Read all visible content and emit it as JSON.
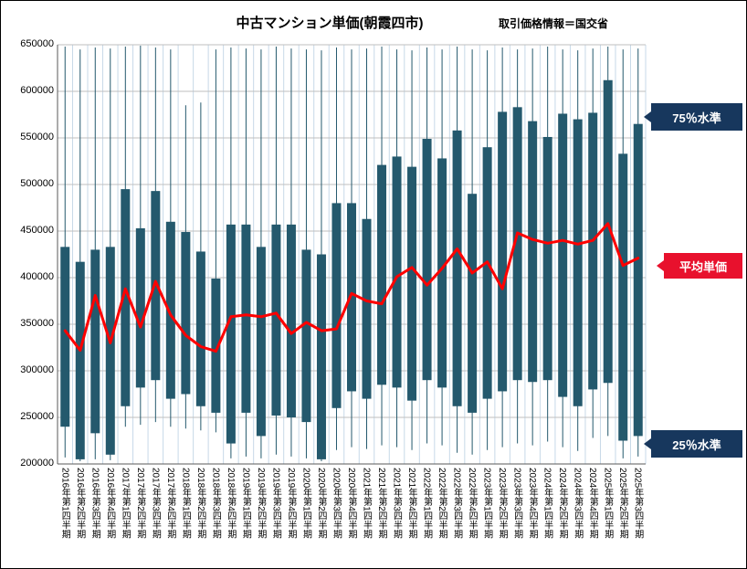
{
  "header": {
    "title": "中古マンション単価(朝霞四市)",
    "source": "取引価格情報＝国交省"
  },
  "annotations": {
    "upper": "75％水準",
    "average": "平均単価",
    "lower": "25％水準"
  },
  "colors": {
    "bar": "#24596d",
    "line": "#ff0000",
    "navy_box": "#17375d",
    "red_box": "#e8112d",
    "h_grid": "#bfbfbf",
    "v_grid": "#c7d9e8",
    "axis": "#595959"
  },
  "chart_data": {
    "type": "bar",
    "subtype": "floating 25%-75% range bars with high/low whiskers and average line",
    "title": "中古マンション単価(朝霞四市)",
    "source_note": "取引価格情報＝国交省",
    "ylim": [
      200000,
      650000
    ],
    "ytick_step": 50000,
    "grid": true,
    "legend": "none",
    "categories": [
      "2016年第1四半期",
      "2016年第2四半期",
      "2016年第3四半期",
      "2016年第4四半期",
      "2017年第1四半期",
      "2017年第2四半期",
      "2017年第3四半期",
      "2017年第4四半期",
      "2018年第1四半期",
      "2018年第2四半期",
      "2018年第3四半期",
      "2018年第4四半期",
      "2019年第1四半期",
      "2019年第2四半期",
      "2019年第3四半期",
      "2019年第4四半期",
      "2020年第1四半期",
      "2020年第2四半期",
      "2020年第3四半期",
      "2020年第4四半期",
      "2021年第1四半期",
      "2021年第2四半期",
      "2021年第3四半期",
      "2021年第4四半期",
      "2022年第1四半期",
      "2022年第2四半期",
      "2022年第3四半期",
      "2022年第4四半期",
      "2023年第1四半期",
      "2023年第2四半期",
      "2023年第3四半期",
      "2023年第4四半期",
      "2024年第1四半期",
      "2024年第2四半期",
      "2024年第3四半期",
      "2024年第4四半期",
      "2025年第1四半期",
      "2025年第2四半期",
      "2025年第3四半期"
    ],
    "series": [
      {
        "key": "q3",
        "name": "75％水準",
        "values": [
          433000,
          417000,
          430000,
          433000,
          495000,
          453000,
          493000,
          460000,
          449000,
          428000,
          399000,
          457000,
          457000,
          433000,
          457000,
          457000,
          430000,
          425000,
          480000,
          480000,
          463000,
          521000,
          530000,
          519000,
          549000,
          528000,
          558000,
          490000,
          540000,
          578000,
          583000,
          568000,
          551000,
          576000,
          570000,
          577000,
          612000,
          533000,
          565000
        ]
      },
      {
        "key": "q1",
        "name": "25％水準",
        "values": [
          240000,
          205000,
          233000,
          210000,
          262000,
          282000,
          290000,
          270000,
          275000,
          262000,
          255000,
          222000,
          255000,
          230000,
          252000,
          250000,
          245000,
          205000,
          260000,
          278000,
          270000,
          285000,
          282000,
          268000,
          290000,
          282000,
          262000,
          255000,
          270000,
          278000,
          290000,
          288000,
          290000,
          272000,
          262000,
          280000,
          287000,
          225000,
          230000
        ]
      },
      {
        "key": "average",
        "name": "平均単価",
        "values": [
          343000,
          322000,
          381000,
          330000,
          388000,
          347000,
          396000,
          360000,
          338000,
          326000,
          321000,
          358000,
          360000,
          358000,
          362000,
          340000,
          352000,
          343000,
          345000,
          383000,
          375000,
          372000,
          401000,
          411000,
          392000,
          410000,
          431000,
          405000,
          417000,
          388000,
          448000,
          441000,
          437000,
          440000,
          436000,
          440000,
          458000,
          413000,
          421000
        ]
      },
      {
        "key": "high",
        "name": "whisker_high",
        "values": [
          648000,
          645000,
          647000,
          646000,
          648000,
          649000,
          647000,
          645000,
          585000,
          588000,
          645000,
          647000,
          646000,
          645000,
          648000,
          646000,
          645000,
          644000,
          647000,
          645000,
          646000,
          648000,
          645000,
          644000,
          647000,
          645000,
          648000,
          645000,
          644000,
          647000,
          645000,
          646000,
          648000,
          645000,
          644000,
          646000,
          648000,
          645000,
          646000
        ]
      },
      {
        "key": "low",
        "name": "whisker_low",
        "values": [
          207000,
          203000,
          205000,
          204000,
          240000,
          242000,
          245000,
          240000,
          238000,
          236000,
          234000,
          206000,
          208000,
          206000,
          210000,
          208000,
          206000,
          203000,
          215000,
          218000,
          216000,
          220000,
          218000,
          215000,
          222000,
          220000,
          212000,
          210000,
          215000,
          218000,
          222000,
          220000,
          224000,
          218000,
          214000,
          228000,
          230000,
          206000,
          208000
        ]
      }
    ]
  }
}
